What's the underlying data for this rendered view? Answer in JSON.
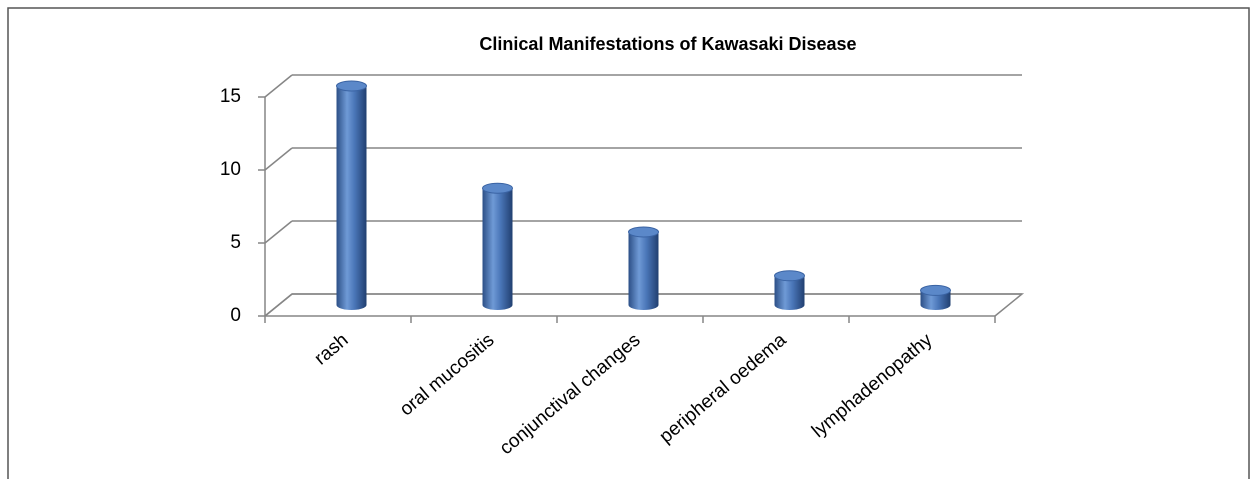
{
  "chart_data": {
    "type": "bar",
    "title": "Clinical Manifestations of Kawasaki Disease",
    "categories": [
      "rash",
      "oral mucositis",
      "conjunctival changes",
      "peripheral oedema",
      "lymphadenopathy"
    ],
    "values": [
      15,
      8,
      5,
      2,
      1
    ],
    "color": "#4f81bd",
    "ylim": [
      0,
      15
    ],
    "yticks": [
      0,
      5,
      10,
      15
    ],
    "grid": true
  }
}
